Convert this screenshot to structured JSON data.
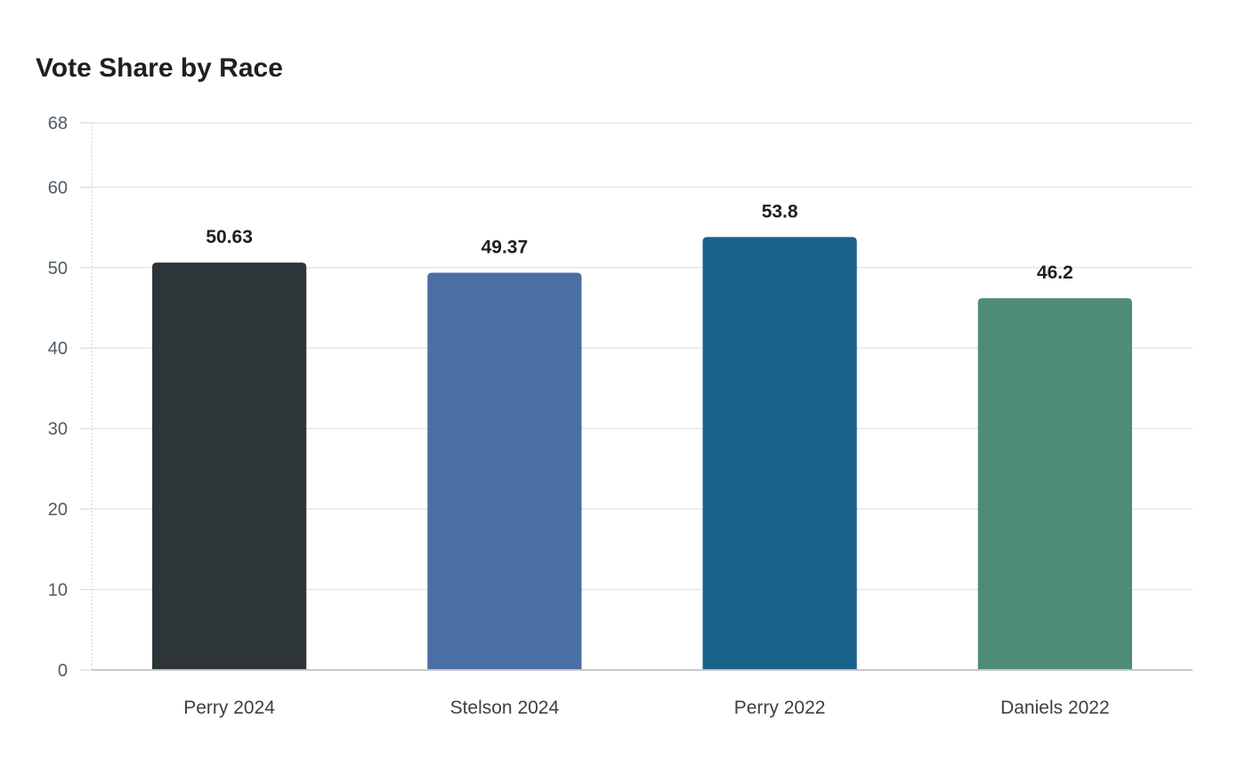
{
  "chart_data": {
    "type": "bar",
    "title": "Vote Share by Race",
    "xlabel": "",
    "ylabel": "",
    "categories": [
      "Perry 2024",
      "Stelson 2024",
      "Perry 2022",
      "Daniels 2022"
    ],
    "values": [
      50.63,
      49.37,
      53.8,
      46.2
    ],
    "value_labels": [
      "50.63",
      "49.37",
      "53.8",
      "46.2"
    ],
    "colors": [
      "#2d3538",
      "#4a6fa5",
      "#196189",
      "#4e8c79"
    ],
    "ylim": [
      0,
      68
    ],
    "yticks": [
      0,
      10,
      20,
      30,
      40,
      50,
      60,
      68
    ],
    "grid": true,
    "legend": "none"
  }
}
